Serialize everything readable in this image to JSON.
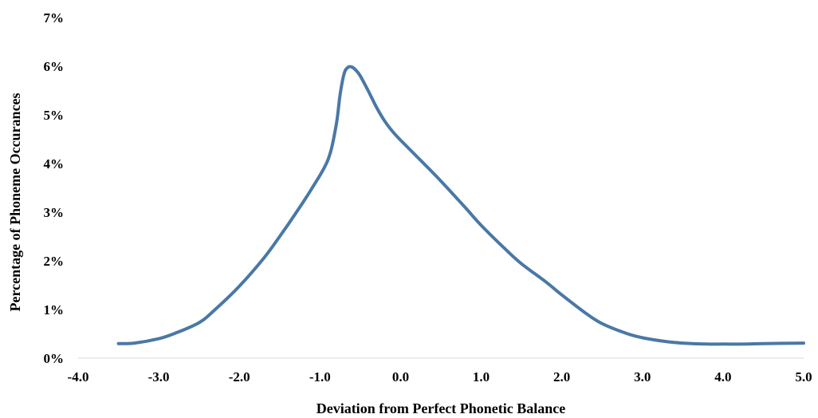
{
  "chart_data": {
    "type": "line",
    "title": "",
    "xlabel": "Deviation from Perfect Phonetic Balance",
    "ylabel": "Percentage of Phoneme Occurances",
    "xlim": [
      -4.0,
      5.0
    ],
    "ylim": [
      0,
      0.07
    ],
    "x_ticks": [
      -4.0,
      -3.0,
      -2.0,
      -1.0,
      0.0,
      1.0,
      2.0,
      3.0,
      4.0,
      5.0
    ],
    "x_tick_labels": [
      "-4.0",
      "-3.0",
      "-2.0",
      "-1.0",
      "0.0",
      "1.0",
      "2.0",
      "3.0",
      "4.0",
      "5.0"
    ],
    "y_ticks": [
      0,
      0.01,
      0.02,
      0.03,
      0.04,
      0.05,
      0.06,
      0.07
    ],
    "y_tick_labels": [
      "0%",
      "1%",
      "2%",
      "3%",
      "4%",
      "5%",
      "6%",
      "7%"
    ],
    "grid": false,
    "legend": "none",
    "series_color": "#4a78a6",
    "series": [
      {
        "x": [
          -3.5,
          -3.3,
          -3.0,
          -2.8,
          -2.5,
          -2.3,
          -2.0,
          -1.7,
          -1.5,
          -1.3,
          -1.1,
          -0.9,
          -0.8,
          -0.75,
          -0.7,
          -0.65,
          -0.6,
          -0.55,
          -0.5,
          -0.4,
          -0.3,
          -0.2,
          -0.1,
          0.0,
          0.3,
          0.5,
          0.8,
          1.0,
          1.3,
          1.5,
          1.8,
          2.0,
          2.3,
          2.5,
          2.8,
          3.0,
          3.3,
          3.5,
          3.8,
          4.0,
          4.3,
          4.5,
          5.0
        ],
        "values": [
          0.003,
          0.0031,
          0.004,
          0.0051,
          0.0073,
          0.01,
          0.0148,
          0.0205,
          0.025,
          0.0298,
          0.0349,
          0.0408,
          0.0478,
          0.0542,
          0.0585,
          0.0598,
          0.0598,
          0.0591,
          0.058,
          0.0549,
          0.0516,
          0.0488,
          0.0466,
          0.0448,
          0.0398,
          0.0364,
          0.031,
          0.0273,
          0.0224,
          0.0194,
          0.0157,
          0.013,
          0.0092,
          0.0071,
          0.0051,
          0.0042,
          0.0034,
          0.0031,
          0.0029,
          0.0029,
          0.0029,
          0.003,
          0.0031
        ]
      }
    ]
  }
}
